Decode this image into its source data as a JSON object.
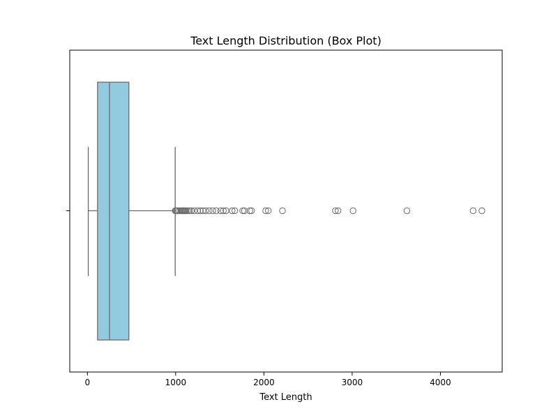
{
  "chart_data": {
    "type": "box",
    "title": "Text Length Distribution (Box Plot)",
    "xlabel": "Text Length",
    "ylabel": "",
    "orientation": "horizontal",
    "xlim": [
      -200,
      4700
    ],
    "xticks": [
      0,
      1000,
      2000,
      3000,
      4000
    ],
    "xtick_labels": [
      "0",
      "1000",
      "2000",
      "3000",
      "4000"
    ],
    "grid": false,
    "legend": "none",
    "box": {
      "whisker_low": 10,
      "q1": 115,
      "median": 250,
      "q3": 470,
      "whisker_high": 995
    },
    "outliers": [
      995,
      1000,
      1010,
      1020,
      1040,
      1060,
      1070,
      1080,
      1090,
      1100,
      1110,
      1120,
      1140,
      1160,
      1180,
      1210,
      1250,
      1280,
      1310,
      1340,
      1380,
      1420,
      1460,
      1510,
      1540,
      1570,
      1640,
      1670,
      1760,
      1780,
      1840,
      1860,
      2020,
      2050,
      2210,
      2810,
      2840,
      3010,
      3620,
      4370,
      4470
    ],
    "colors": {
      "box_fill": "#92cae0",
      "box_edge": "#6b6b6b",
      "whisker": "#6b6b6b",
      "outlier_edge": "#6b6b6b",
      "axes": "#000000"
    }
  }
}
